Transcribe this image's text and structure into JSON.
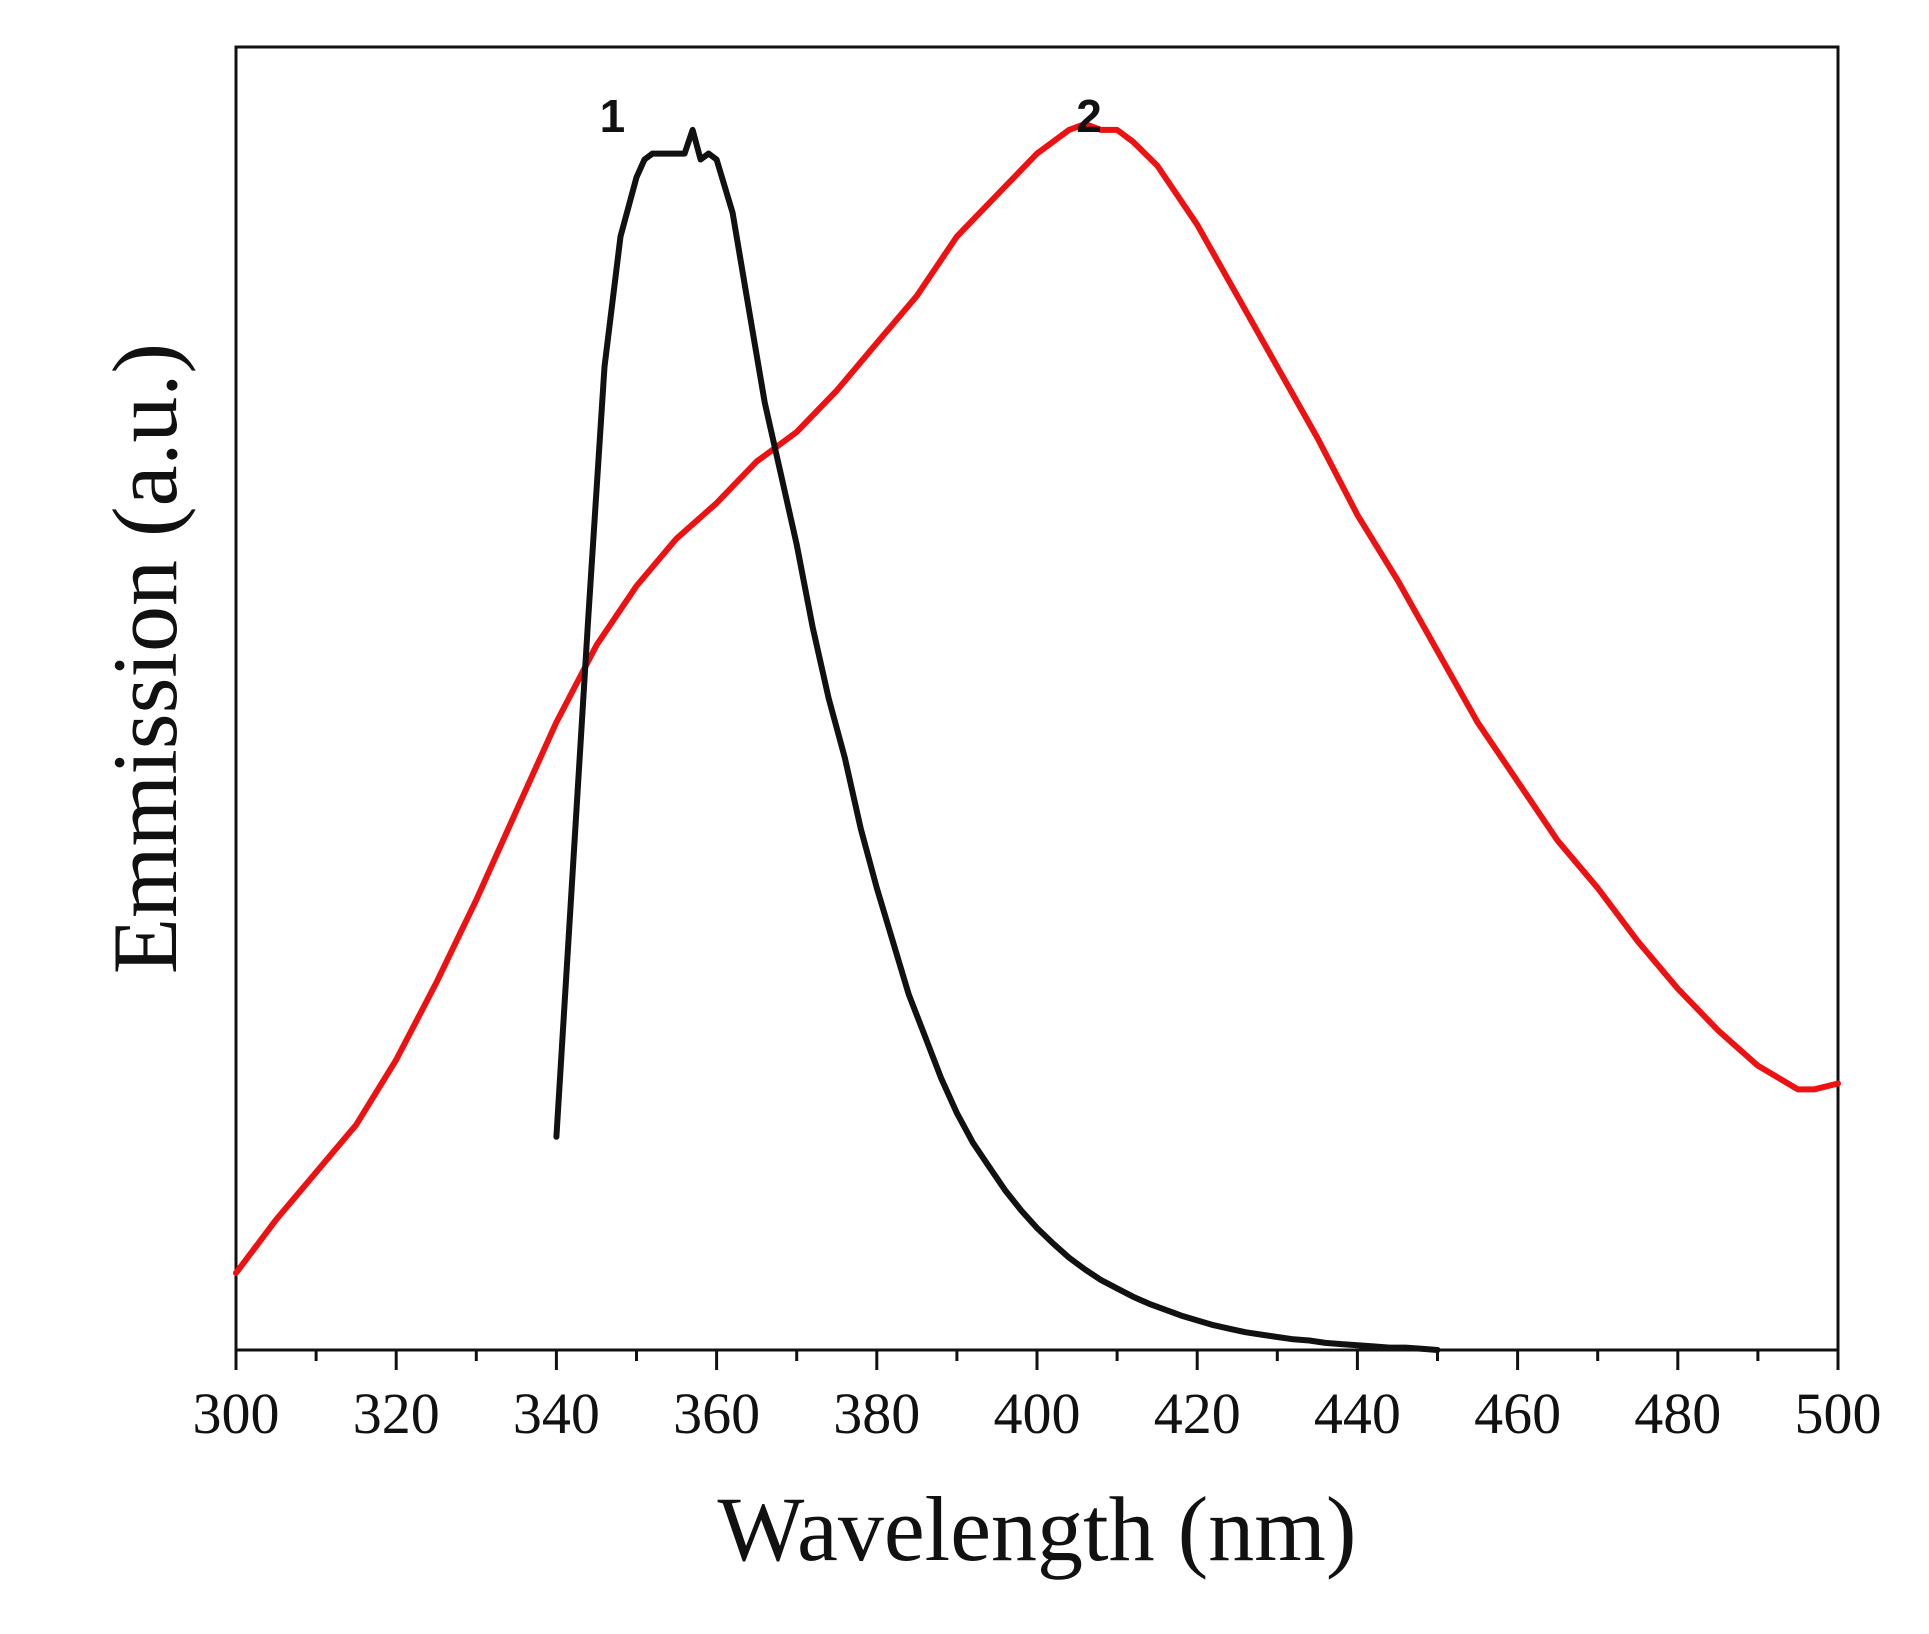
{
  "chart_data": {
    "type": "line",
    "title": "",
    "xlabel": "Wavelength (nm)",
    "ylabel": "Emmission (a.u.)",
    "xlim": [
      300,
      500
    ],
    "ylim": [
      0,
      1.1
    ],
    "x_ticks": [
      300,
      320,
      340,
      360,
      380,
      400,
      420,
      440,
      460,
      480,
      500
    ],
    "x_tick_labels": [
      "300",
      "320",
      "340",
      "360",
      "380",
      "400",
      "420",
      "440",
      "460",
      "480",
      "500"
    ],
    "y_ticks_shown": false,
    "grid": false,
    "legend": "none (curves labelled directly)",
    "series": [
      {
        "name": "1",
        "label": "1",
        "color": "#111111",
        "label_at": {
          "x": 347,
          "y": 1.04
        },
        "x": [
          340,
          342,
          344,
          346,
          348,
          350,
          351,
          352,
          354,
          356,
          357,
          358,
          359,
          360,
          362,
          364,
          366,
          368,
          370,
          372,
          374,
          376,
          378,
          380,
          382,
          384,
          386,
          388,
          390,
          392,
          394,
          396,
          398,
          400,
          402,
          404,
          406,
          408,
          410,
          412,
          414,
          416,
          418,
          420,
          422,
          424,
          426,
          428,
          430,
          432,
          434,
          436,
          438,
          440,
          442,
          444,
          446,
          448,
          450
        ],
        "y": [
          0.18,
          0.4,
          0.62,
          0.83,
          0.94,
          0.99,
          1.005,
          1.01,
          1.01,
          1.01,
          1.03,
          1.005,
          1.01,
          1.005,
          0.96,
          0.88,
          0.8,
          0.74,
          0.68,
          0.61,
          0.55,
          0.5,
          0.44,
          0.39,
          0.345,
          0.3,
          0.265,
          0.23,
          0.2,
          0.175,
          0.155,
          0.135,
          0.118,
          0.103,
          0.09,
          0.078,
          0.068,
          0.059,
          0.052,
          0.045,
          0.039,
          0.034,
          0.029,
          0.025,
          0.021,
          0.018,
          0.015,
          0.013,
          0.011,
          0.009,
          0.008,
          0.006,
          0.005,
          0.004,
          0.003,
          0.002,
          0.002,
          0.001,
          0.0
        ]
      },
      {
        "name": "2",
        "label": "2",
        "color": "#ee1111",
        "label_at": {
          "x": 406.5,
          "y": 1.04
        },
        "x": [
          300,
          305,
          310,
          315,
          320,
          325,
          330,
          335,
          340,
          345,
          350,
          355,
          360,
          365,
          370,
          375,
          380,
          385,
          390,
          395,
          400,
          402,
          404,
          406,
          408,
          410,
          412,
          415,
          420,
          425,
          430,
          435,
          440,
          445,
          450,
          455,
          460,
          465,
          470,
          475,
          480,
          485,
          490,
          495,
          497,
          500
        ],
        "y": [
          0.065,
          0.11,
          0.15,
          0.19,
          0.245,
          0.31,
          0.38,
          0.455,
          0.53,
          0.595,
          0.645,
          0.685,
          0.715,
          0.75,
          0.775,
          0.81,
          0.85,
          0.89,
          0.94,
          0.975,
          1.01,
          1.02,
          1.03,
          1.035,
          1.03,
          1.03,
          1.02,
          1.0,
          0.95,
          0.89,
          0.83,
          0.77,
          0.705,
          0.65,
          0.59,
          0.53,
          0.48,
          0.43,
          0.39,
          0.345,
          0.305,
          0.27,
          0.24,
          0.22,
          0.22,
          0.225
        ]
      }
    ]
  }
}
